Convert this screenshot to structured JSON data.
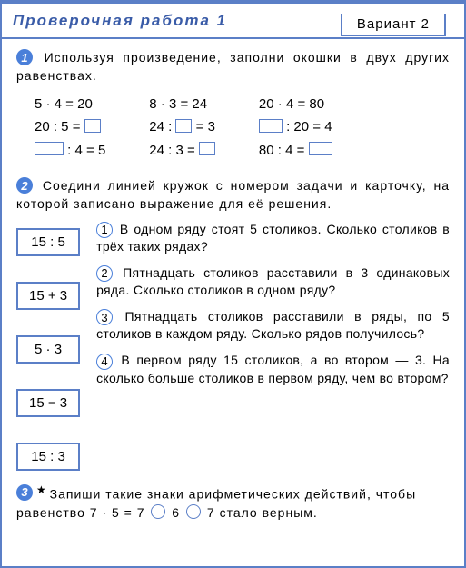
{
  "header": {
    "title": "Проверочная работа 1",
    "variant": "Вариант 2"
  },
  "task1": {
    "num": "1",
    "prompt": "Используя произведение, заполни окошки в двух других равенствах.",
    "col1": {
      "r1": "5 · 4 = 20",
      "r2_a": "20 : 5 = ",
      "r3_b": " : 4 = 5"
    },
    "col2": {
      "r1": "8 · 3 = 24",
      "r2_a": "24 : ",
      "r2_b": " = 3",
      "r3_a": "24 : 3 = "
    },
    "col3": {
      "r1": "20 · 4 = 80",
      "r2_b": " : 20 = 4",
      "r3_a": "80 : 4 = "
    }
  },
  "task2": {
    "num": "2",
    "prompt": "Соедини линией кружок с номером задачи и карточку, на которой записано выражение для её решения.",
    "cards": [
      "15 : 5",
      "15 + 3",
      "5 · 3",
      "15 − 3",
      "15 : 3"
    ],
    "problems": {
      "p1": {
        "n": "1",
        "text": "В одном ряду стоят 5 столиков. Сколько столиков в трёх таких рядах?"
      },
      "p2": {
        "n": "2",
        "text": "Пятнадцать столиков расставили в 3 одинаковых ряда. Сколько столиков в одном ряду?"
      },
      "p3": {
        "n": "3",
        "text": "Пятнадцать столиков расставили в ряды, по 5 столиков в каждом ряду. Сколько рядов получилось?"
      },
      "p4": {
        "n": "4",
        "text": "В первом ряду 15 столиков, а во втором — 3. На сколько больше столиков в первом ряду, чем во втором?"
      }
    }
  },
  "task3": {
    "num": "3",
    "prompt_a": "Запиши такие знаки арифметических действий, чтобы равенство ",
    "expr_a": "7 · 5 = 7",
    "expr_mid": "6",
    "expr_end": "7",
    "prompt_b": " стало верным."
  }
}
